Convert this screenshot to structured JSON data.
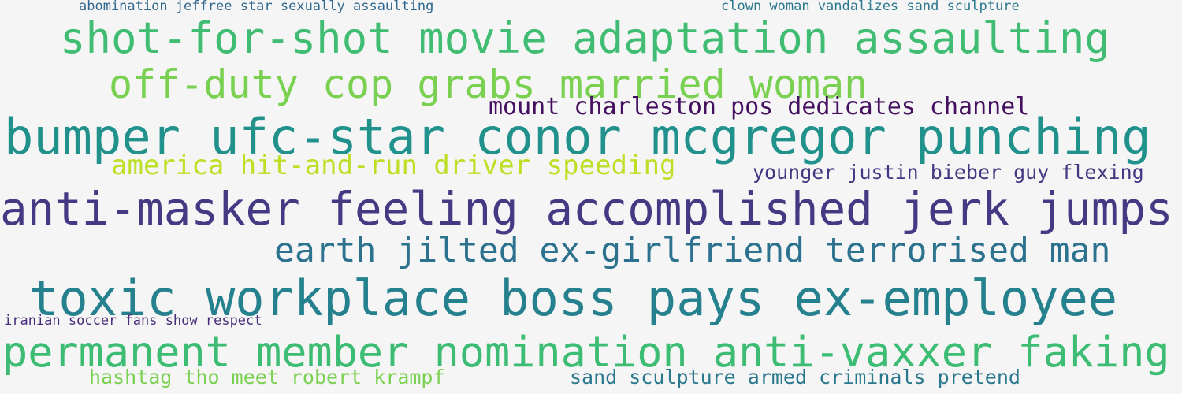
{
  "phrases": [
    {
      "text": "abomination jeffree star sexually assaulting",
      "color": "#31688e"
    },
    {
      "text": "clown woman vandalizes sand sculpture",
      "color": "#2a788e"
    },
    {
      "text": "shot-for-shot movie adaptation assaulting",
      "color": "#40bd72"
    },
    {
      "text": "off-duty cop grabs married woman",
      "color": "#7ad151"
    },
    {
      "text": "mount charleston pos dedicates channel",
      "color": "#440f60"
    },
    {
      "text": "bumper ufc-star conor mcgregor punching",
      "color": "#21918c"
    },
    {
      "text": "america hit-and-run driver speeding",
      "color": "#bddf26"
    },
    {
      "text": "younger justin bieber guy flexing",
      "color": "#453781"
    },
    {
      "text": "anti-masker feeling accomplished jerk jumps",
      "color": "#443983"
    },
    {
      "text": "earth jilted ex-girlfriend terrorised man",
      "color": "#2c728e"
    },
    {
      "text": "toxic workplace boss pays ex-employee",
      "color": "#26818e"
    },
    {
      "text": "iranian soccer fans show respect",
      "color": "#472d7b"
    },
    {
      "text": "permanent member nomination anti-vaxxer faking",
      "color": "#3dbc74"
    },
    {
      "text": "hashtag tho meet robert krampf",
      "color": "#7ad151"
    },
    {
      "text": "sand sculpture armed criminals pretend",
      "color": "#2a788e"
    }
  ]
}
